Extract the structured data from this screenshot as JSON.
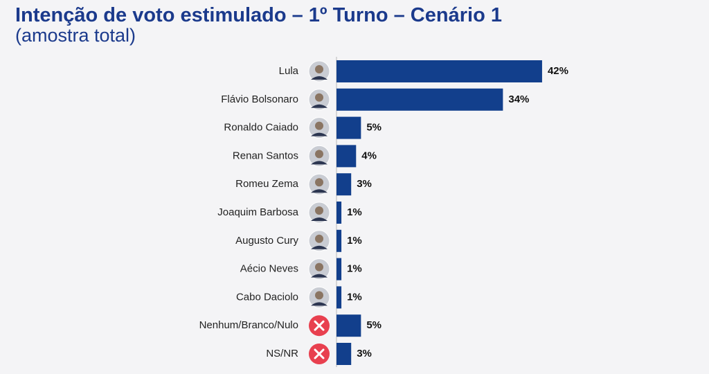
{
  "chart_data": {
    "type": "barh",
    "title": "Intenção de voto estimulado – 1º Turno – Cenário 1",
    "subtitle": "(amostra total)",
    "categories": [
      "Lula",
      "Flávio Bolsonaro",
      "Ronaldo Caiado",
      "Renan Santos",
      "Romeu Zema",
      "Joaquim Barbosa",
      "Augusto Cury",
      "Aécio Neves",
      "Cabo Daciolo",
      "Nenhum/Branco/Nulo",
      "NS/NR"
    ],
    "values": [
      42,
      34,
      5,
      4,
      3,
      1,
      1,
      1,
      1,
      5,
      3
    ],
    "value_labels": [
      "42%",
      "34%",
      "5%",
      "4%",
      "3%",
      "1%",
      "1%",
      "1%",
      "1%",
      "5%",
      "3%"
    ],
    "color": "#123f8c"
  }
}
